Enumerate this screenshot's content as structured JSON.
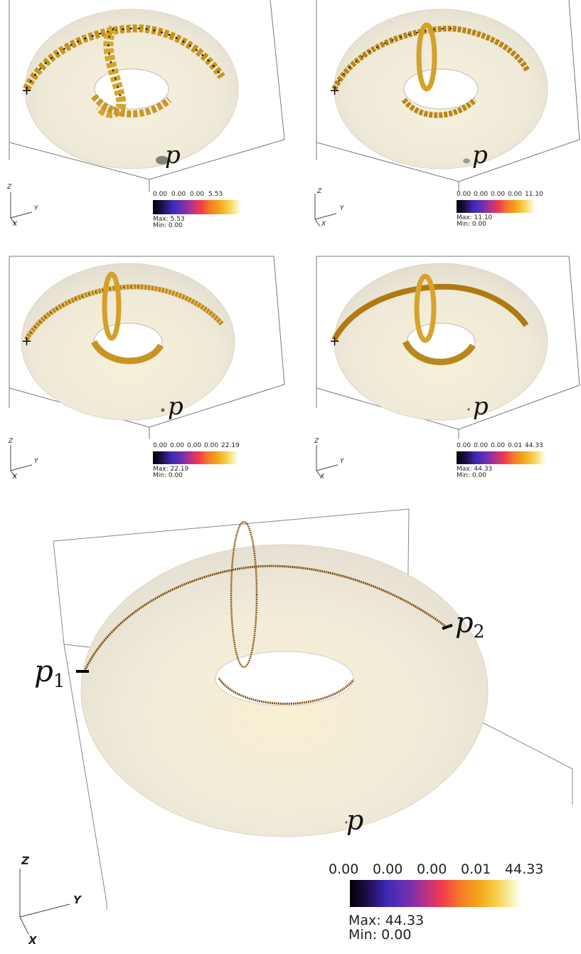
{
  "labels": {
    "p": "p",
    "p1": "p",
    "p1_sub": "1",
    "p2": "p",
    "p2_sub": "2"
  },
  "axes": {
    "z": "Z",
    "y": "Y",
    "x": "X"
  },
  "panels": [
    {
      "ticks": [
        "0.00",
        "0.00",
        "0.00",
        "5.53"
      ],
      "max": "Max: 5.53",
      "min": "Min: 0.00"
    },
    {
      "ticks": [
        "0.00",
        "0.00",
        "0.00",
        "0.00",
        "11.10"
      ],
      "max": "Max: 11.10",
      "min": "Min: 0.00"
    },
    {
      "ticks": [
        "0.00",
        "0.00",
        "0.00",
        "0.00",
        "22.19"
      ],
      "max": "Max: 22.19",
      "min": "Min: 0.00"
    },
    {
      "ticks": [
        "0.00",
        "0.00",
        "0.00",
        "0.01",
        "44.33"
      ],
      "max": "Max: 44.33",
      "min": "Min: 0.00"
    },
    {
      "ticks": [
        "0.00",
        "0.00",
        "0.00",
        "0.01",
        "44.33"
      ],
      "max": "Max: 44.33",
      "min": "Min: 0.00"
    }
  ],
  "colormap": [
    "#000000",
    "#3d2ab8",
    "#b8308a",
    "#f23a4a",
    "#f2a418",
    "#f8f0b4"
  ]
}
